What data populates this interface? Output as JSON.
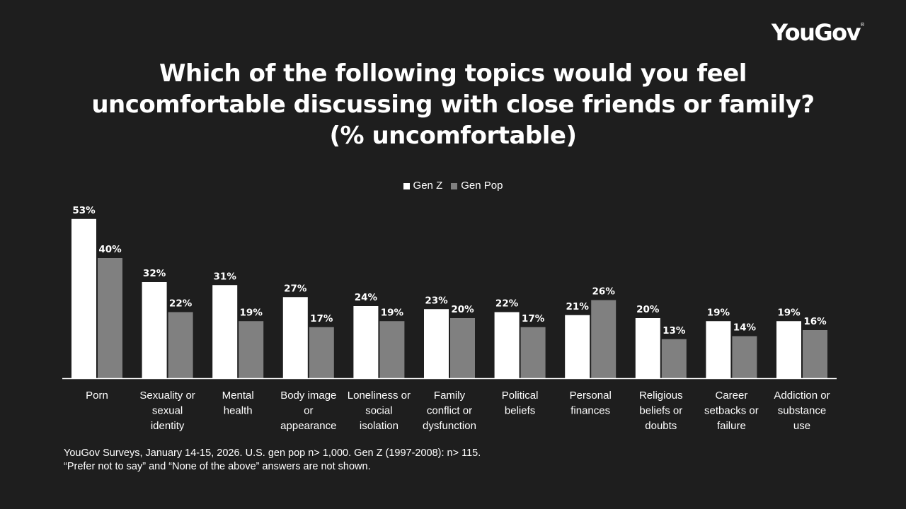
{
  "brand": {
    "logo_text": "YouGov",
    "logo_mark": "®"
  },
  "chart_data": {
    "type": "bar",
    "title_lines": [
      "Which of the following topics would you feel",
      "uncomfortable discussing with close friends or family?",
      "(% uncomfortable)"
    ],
    "legend_position": "top-center",
    "grid": false,
    "ylim": [
      0,
      60
    ],
    "categories": [
      [
        "Porn"
      ],
      [
        "Sexuality or",
        "sexual",
        "identity"
      ],
      [
        "Mental",
        "health"
      ],
      [
        "Body image",
        "or",
        "appearance"
      ],
      [
        "Loneliness or",
        "social",
        "isolation"
      ],
      [
        "Family",
        "conflict or",
        "dysfunction"
      ],
      [
        "Political",
        "beliefs"
      ],
      [
        "Personal",
        "finances"
      ],
      [
        "Religious",
        "beliefs or",
        "doubts"
      ],
      [
        "Career",
        "setbacks or",
        "failure"
      ],
      [
        "Addiction or",
        "substance",
        "use"
      ]
    ],
    "series": [
      {
        "name": "Gen Z",
        "color": "#ffffff",
        "values": [
          53,
          32,
          31,
          27,
          24,
          23,
          22,
          21,
          20,
          19,
          19
        ],
        "labels": [
          "53%",
          "32%",
          "31%",
          "27%",
          "24%",
          "23%",
          "22%",
          "21%",
          "20%",
          "19%",
          "19%"
        ]
      },
      {
        "name": "Gen Pop",
        "color": "#808080",
        "values": [
          40,
          22,
          19,
          17,
          19,
          20,
          17,
          26,
          13,
          14,
          16
        ],
        "labels": [
          "40%",
          "22%",
          "19%",
          "17%",
          "19%",
          "20%",
          "17%",
          "26%",
          "13%",
          "14%",
          "16%"
        ]
      }
    ]
  },
  "footnote": {
    "line1": "YouGov Surveys, January 14-15, 2026. U.S. gen pop n> 1,000. Gen Z (1997-2008): n> 115.",
    "line2": "“Prefer not to say” and “None of the above” answers are not shown."
  }
}
